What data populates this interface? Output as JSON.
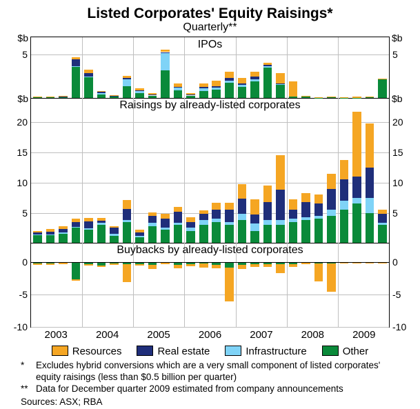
{
  "title": "Listed Corporates' Equity Raisings*",
  "subtitle": "Quarterly**",
  "axis_unit": "$b",
  "colors": {
    "resources": "#f5a623",
    "real_estate": "#1f2e7a",
    "infrastructure": "#7fd3f7",
    "other": "#0a8a3a",
    "grid": "#bfbfbf",
    "bg": "#ffffff",
    "text": "#000000"
  },
  "legend": [
    {
      "key": "resources",
      "label": "Resources"
    },
    {
      "key": "real_estate",
      "label": "Real estate"
    },
    {
      "key": "infrastructure",
      "label": "Infrastructure"
    },
    {
      "key": "other",
      "label": "Other"
    }
  ],
  "years": [
    2003,
    2004,
    2005,
    2006,
    2007,
    2008,
    2009
  ],
  "panels": [
    {
      "id": "ipos",
      "label": "IPOs",
      "height_pct": 21,
      "ymin": 0,
      "ymax": 7,
      "yticks": [
        5
      ],
      "unit_top": true,
      "bars": [
        {
          "o": 0.1,
          "i": 0,
          "r": 0,
          "e": 0.05
        },
        {
          "o": 0.1,
          "i": 0,
          "r": 0,
          "e": 0.05
        },
        {
          "o": 0.15,
          "i": 0,
          "r": 0.05,
          "e": 0.1
        },
        {
          "o": 3.6,
          "i": 0.1,
          "r": 0.8,
          "e": 0.2
        },
        {
          "o": 2.4,
          "i": 0.1,
          "r": 0.4,
          "e": 0.4
        },
        {
          "o": 0.4,
          "i": 0.2,
          "r": 0.1,
          "e": 0.1
        },
        {
          "o": 0.2,
          "i": 0.05,
          "r": 0.05,
          "e": 0.05
        },
        {
          "o": 1.4,
          "i": 0.8,
          "r": 0.1,
          "e": 0.3
        },
        {
          "o": 0.6,
          "i": 0.2,
          "r": 0.1,
          "e": 0.2
        },
        {
          "o": 0.3,
          "i": 0.1,
          "r": 0.05,
          "e": 0.1
        },
        {
          "o": 3.2,
          "i": 2.0,
          "r": 0.1,
          "e": 0.3
        },
        {
          "o": 0.9,
          "i": 0.3,
          "r": 0.1,
          "e": 0.4
        },
        {
          "o": 0.3,
          "i": 0.1,
          "r": 0.05,
          "e": 0.1
        },
        {
          "o": 0.8,
          "i": 0.3,
          "r": 0.2,
          "e": 0.4
        },
        {
          "o": 1.0,
          "i": 0.2,
          "r": 0.2,
          "e": 0.6
        },
        {
          "o": 1.8,
          "i": 0.2,
          "r": 0.3,
          "e": 0.7
        },
        {
          "o": 1.3,
          "i": 0.2,
          "r": 0.2,
          "e": 0.6
        },
        {
          "o": 1.9,
          "i": 0.3,
          "r": 0.3,
          "e": 0.5
        },
        {
          "o": 3.5,
          "i": 0.2,
          "r": 0.1,
          "e": 0.3
        },
        {
          "o": 1.5,
          "i": 0.1,
          "r": 0.1,
          "e": 1.2
        },
        {
          "o": 0.15,
          "i": 0,
          "r": 0,
          "e": 1.8
        },
        {
          "o": 0.2,
          "i": 0,
          "r": 0,
          "e": 0.1
        },
        {
          "o": 0.05,
          "i": 0,
          "r": 0,
          "e": 0.05
        },
        {
          "o": 0.1,
          "i": 0,
          "r": 0,
          "e": 0.05
        },
        {
          "o": 0.05,
          "i": 0,
          "r": 0,
          "e": 0.05
        },
        {
          "o": 0.05,
          "i": 0,
          "r": 0,
          "e": 0.1
        },
        {
          "o": 0.1,
          "i": 0,
          "r": 0,
          "e": 0.05
        },
        {
          "o": 2.2,
          "i": 0,
          "r": 0,
          "e": 0.05
        }
      ]
    },
    {
      "id": "raisings",
      "label": "Raisings by already-listed corporates",
      "height_pct": 50,
      "ymin": 0,
      "ymax": 24,
      "yticks": [
        5,
        10,
        15,
        20
      ],
      "unit_top": true,
      "bars": [
        {
          "o": 1.3,
          "i": 0.1,
          "r": 0.3,
          "e": 0.3
        },
        {
          "o": 1.3,
          "i": 0.1,
          "r": 0.5,
          "e": 0.4
        },
        {
          "o": 1.5,
          "i": 0.2,
          "r": 0.6,
          "e": 0.5
        },
        {
          "o": 2.5,
          "i": 0.2,
          "r": 0.8,
          "e": 0.5
        },
        {
          "o": 2.2,
          "i": 0.2,
          "r": 1.2,
          "e": 0.6
        },
        {
          "o": 3.0,
          "i": 0.3,
          "r": 0.4,
          "e": 0.5
        },
        {
          "o": 1.2,
          "i": 0.3,
          "r": 1.0,
          "e": 0.3
        },
        {
          "o": 3.5,
          "i": 0.3,
          "r": 1.8,
          "e": 1.5
        },
        {
          "o": 1.0,
          "i": 0.2,
          "r": 0.6,
          "e": 0.4
        },
        {
          "o": 2.8,
          "i": 0.5,
          "r": 1.2,
          "e": 0.6
        },
        {
          "o": 2.2,
          "i": 0.3,
          "r": 1.5,
          "e": 0.8
        },
        {
          "o": 3.0,
          "i": 0.4,
          "r": 1.8,
          "e": 0.8
        },
        {
          "o": 2.0,
          "i": 0.5,
          "r": 1.0,
          "e": 0.8
        },
        {
          "o": 3.0,
          "i": 0.8,
          "r": 1.0,
          "e": 0.6
        },
        {
          "o": 3.5,
          "i": 0.5,
          "r": 1.5,
          "e": 1.2
        },
        {
          "o": 3.0,
          "i": 0.5,
          "r": 2.0,
          "e": 1.2
        },
        {
          "o": 3.8,
          "i": 1.0,
          "r": 2.5,
          "e": 2.5
        },
        {
          "o": 2.0,
          "i": 1.2,
          "r": 1.5,
          "e": 2.5
        },
        {
          "o": 3.0,
          "i": 0.8,
          "r": 3.0,
          "e": 2.7
        },
        {
          "o": 3.0,
          "i": 0.8,
          "r": 5.0,
          "e": 5.8
        },
        {
          "o": 3.5,
          "i": 0.5,
          "r": 1.5,
          "e": 1.7
        },
        {
          "o": 3.8,
          "i": 0.5,
          "r": 2.5,
          "e": 1.5
        },
        {
          "o": 4.0,
          "i": 0.5,
          "r": 2.0,
          "e": 1.5
        },
        {
          "o": 4.5,
          "i": 1.0,
          "r": 3.5,
          "e": 2.5
        },
        {
          "o": 5.5,
          "i": 1.5,
          "r": 3.5,
          "e": 3.2
        },
        {
          "o": 6.5,
          "i": 1.0,
          "r": 3.5,
          "e": 10.7
        },
        {
          "o": 5.0,
          "i": 2.5,
          "r": 5.0,
          "e": 7.3
        },
        {
          "o": 3.0,
          "i": 0.3,
          "r": 1.5,
          "e": 0.7
        }
      ]
    },
    {
      "id": "buybacks",
      "label": "Buybacks by already-listed corporates",
      "height_pct": 29,
      "ymin": -10,
      "ymax": 3,
      "yticks": [
        0,
        -5,
        -10
      ],
      "zero_at": 0,
      "bars": [
        {
          "o": -0.2,
          "i": 0,
          "r": 0,
          "e": -0.2
        },
        {
          "o": -0.2,
          "i": 0,
          "r": 0,
          "e": -0.2
        },
        {
          "o": -0.1,
          "i": 0,
          "r": 0,
          "e": -0.2
        },
        {
          "o": -2.6,
          "i": 0,
          "r": 0,
          "e": -0.2
        },
        {
          "o": -0.3,
          "i": 0,
          "r": 0,
          "e": -0.2
        },
        {
          "o": -0.5,
          "i": 0,
          "r": 0,
          "e": -0.2
        },
        {
          "o": -0.2,
          "i": 0,
          "r": 0,
          "e": -0.2
        },
        {
          "o": -0.3,
          "i": 0,
          "r": 0,
          "e": -2.8
        },
        {
          "o": -0.3,
          "i": 0,
          "r": 0,
          "e": -0.2
        },
        {
          "o": -0.4,
          "i": 0,
          "r": 0,
          "e": -0.6
        },
        {
          "o": -0.1,
          "i": 0,
          "r": 0,
          "e": -0.2
        },
        {
          "o": -0.4,
          "i": 0,
          "r": 0,
          "e": -0.5
        },
        {
          "o": -0.3,
          "i": 0,
          "r": 0,
          "e": -0.3
        },
        {
          "o": -0.2,
          "i": 0,
          "r": 0,
          "e": -0.6
        },
        {
          "o": -0.4,
          "i": 0,
          "r": 0,
          "e": -0.5
        },
        {
          "o": -0.8,
          "i": 0,
          "r": 0,
          "e": -5.2
        },
        {
          "o": -0.4,
          "i": 0,
          "r": 0,
          "e": -0.6
        },
        {
          "o": -0.3,
          "i": 0,
          "r": 0,
          "e": -0.4
        },
        {
          "o": -0.3,
          "i": 0,
          "r": 0,
          "e": -0.4
        },
        {
          "o": -0.3,
          "i": 0,
          "r": 0,
          "e": -1.4
        },
        {
          "o": -0.3,
          "i": 0,
          "r": 0,
          "e": -0.4
        },
        {
          "o": -0.1,
          "i": 0,
          "r": 0,
          "e": -0.2
        },
        {
          "o": -0.2,
          "i": 0,
          "r": 0,
          "e": -2.8
        },
        {
          "o": -0.2,
          "i": 0,
          "r": 0,
          "e": -4.3
        },
        {
          "o": -0.1,
          "i": 0,
          "r": 0,
          "e": -0.1
        },
        {
          "o": -0.1,
          "i": 0,
          "r": 0,
          "e": -0.1
        },
        {
          "o": -0.05,
          "i": 0,
          "r": 0,
          "e": -0.05
        },
        {
          "o": -0.05,
          "i": 0,
          "r": 0,
          "e": -0.1
        }
      ]
    }
  ],
  "footnotes": [
    {
      "mark": "*",
      "text": "Excludes hybrid conversions which are a very small component of listed corporates' equity raisings (less than $0.5 billion per quarter)"
    },
    {
      "mark": "**",
      "text": "Data for December quarter 2009 estimated from company announcements"
    }
  ],
  "sources": "Sources: ASX; RBA"
}
